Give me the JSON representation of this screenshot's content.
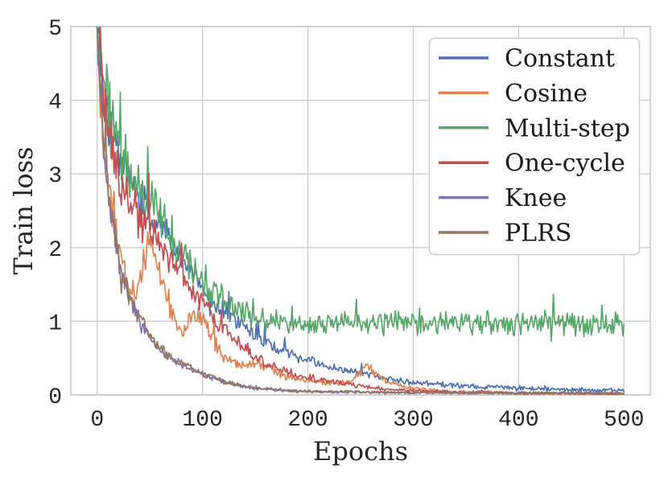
{
  "colors": {
    "background": "#ffffff",
    "grid": "#cccccc",
    "spine": "#c8c8c8",
    "text": "#262626",
    "legend_border": "#cccccc",
    "legend_background": "#ffffff"
  },
  "chart_data": {
    "type": "line",
    "title": "",
    "xlabel": "Epochs",
    "ylabel": "Train loss",
    "xlim": [
      -25,
      525
    ],
    "ylim": [
      0,
      5
    ],
    "xticks": [
      0,
      100,
      200,
      300,
      400,
      500
    ],
    "yticks": [
      0,
      1,
      2,
      3,
      4,
      5
    ],
    "grid": true,
    "legend_position": "upper right",
    "x_data_range": [
      0,
      500
    ],
    "series": [
      {
        "name": "Constant",
        "color": "#4C72B0",
        "seed": 101,
        "noise_base": 0.02,
        "noise_rel": 0.07,
        "spike_prob": 0.05,
        "spike_rel": 0.35,
        "keyframes": [
          [
            0,
            5.05
          ],
          [
            3,
            4.6
          ],
          [
            8,
            3.9
          ],
          [
            15,
            3.45
          ],
          [
            25,
            3.05
          ],
          [
            35,
            2.8
          ],
          [
            45,
            2.55
          ],
          [
            55,
            2.35
          ],
          [
            65,
            2.2
          ],
          [
            75,
            1.95
          ],
          [
            85,
            1.75
          ],
          [
            95,
            1.55
          ],
          [
            105,
            1.35
          ],
          [
            115,
            1.18
          ],
          [
            130,
            1.05
          ],
          [
            145,
            0.88
          ],
          [
            160,
            0.72
          ],
          [
            180,
            0.58
          ],
          [
            200,
            0.47
          ],
          [
            225,
            0.36
          ],
          [
            250,
            0.3
          ],
          [
            275,
            0.22
          ],
          [
            300,
            0.17
          ],
          [
            325,
            0.14
          ],
          [
            350,
            0.12
          ],
          [
            375,
            0.1
          ],
          [
            400,
            0.09
          ],
          [
            430,
            0.08
          ],
          [
            460,
            0.07
          ],
          [
            500,
            0.055
          ]
        ]
      },
      {
        "name": "Cosine",
        "color": "#DD8452",
        "seed": 202,
        "noise_base": 0.015,
        "noise_rel": 0.09,
        "spike_prob": 0.05,
        "spike_rel": 0.3,
        "keyframes": [
          [
            0,
            5.05
          ],
          [
            2,
            4.4
          ],
          [
            5,
            3.7
          ],
          [
            10,
            2.9
          ],
          [
            15,
            2.45
          ],
          [
            20,
            1.95
          ],
          [
            25,
            1.7
          ],
          [
            30,
            1.45
          ],
          [
            35,
            1.35
          ],
          [
            40,
            1.5
          ],
          [
            45,
            1.8
          ],
          [
            50,
            2.05
          ],
          [
            55,
            1.85
          ],
          [
            60,
            1.55
          ],
          [
            65,
            1.3
          ],
          [
            70,
            1.1
          ],
          [
            75,
            0.95
          ],
          [
            80,
            0.9
          ],
          [
            85,
            0.95
          ],
          [
            90,
            1.05
          ],
          [
            95,
            1.12
          ],
          [
            100,
            1.05
          ],
          [
            105,
            0.9
          ],
          [
            110,
            0.75
          ],
          [
            115,
            0.62
          ],
          [
            120,
            0.52
          ],
          [
            130,
            0.45
          ],
          [
            140,
            0.4
          ],
          [
            150,
            0.42
          ],
          [
            160,
            0.38
          ],
          [
            170,
            0.3
          ],
          [
            180,
            0.26
          ],
          [
            190,
            0.22
          ],
          [
            200,
            0.2
          ],
          [
            210,
            0.18
          ],
          [
            220,
            0.16
          ],
          [
            230,
            0.15
          ],
          [
            240,
            0.18
          ],
          [
            250,
            0.3
          ],
          [
            255,
            0.42
          ],
          [
            260,
            0.35
          ],
          [
            265,
            0.28
          ],
          [
            270,
            0.22
          ],
          [
            280,
            0.16
          ],
          [
            290,
            0.12
          ],
          [
            300,
            0.09
          ],
          [
            320,
            0.06
          ],
          [
            340,
            0.04
          ],
          [
            370,
            0.03
          ],
          [
            420,
            0.02
          ],
          [
            500,
            0.012
          ]
        ]
      },
      {
        "name": "Multi-step",
        "color": "#55A868",
        "seed": 303,
        "noise_base": 0.03,
        "noise_rel": 0.1,
        "spike_prob": 0.08,
        "spike_rel": 0.3,
        "keyframes": [
          [
            0,
            5.05
          ],
          [
            3,
            4.65
          ],
          [
            8,
            4.0
          ],
          [
            15,
            3.55
          ],
          [
            25,
            3.15
          ],
          [
            35,
            2.9
          ],
          [
            45,
            2.65
          ],
          [
            55,
            2.45
          ],
          [
            65,
            2.25
          ],
          [
            75,
            2.05
          ],
          [
            85,
            1.85
          ],
          [
            95,
            1.65
          ],
          [
            105,
            1.5
          ],
          [
            115,
            1.35
          ],
          [
            125,
            1.22
          ],
          [
            135,
            1.12
          ],
          [
            150,
            1.03
          ],
          [
            165,
            0.99
          ],
          [
            200,
            0.97
          ],
          [
            250,
            0.98
          ],
          [
            300,
            0.97
          ],
          [
            350,
            0.99
          ],
          [
            400,
            0.98
          ],
          [
            450,
            0.97
          ],
          [
            500,
            0.96
          ]
        ]
      },
      {
        "name": "One-cycle",
        "color": "#C44E52",
        "seed": 404,
        "noise_base": 0.015,
        "noise_rel": 0.09,
        "spike_prob": 0.05,
        "spike_rel": 0.3,
        "keyframes": [
          [
            0,
            5.05
          ],
          [
            3,
            4.5
          ],
          [
            8,
            3.8
          ],
          [
            15,
            3.2
          ],
          [
            25,
            2.8
          ],
          [
            35,
            2.55
          ],
          [
            45,
            2.3
          ],
          [
            55,
            2.1
          ],
          [
            65,
            1.9
          ],
          [
            75,
            1.7
          ],
          [
            85,
            1.5
          ],
          [
            95,
            1.32
          ],
          [
            105,
            1.15
          ],
          [
            115,
            0.97
          ],
          [
            125,
            0.82
          ],
          [
            135,
            0.68
          ],
          [
            145,
            0.56
          ],
          [
            160,
            0.42
          ],
          [
            180,
            0.31
          ],
          [
            200,
            0.24
          ],
          [
            225,
            0.17
          ],
          [
            250,
            0.12
          ],
          [
            275,
            0.08
          ],
          [
            300,
            0.055
          ],
          [
            350,
            0.035
          ],
          [
            425,
            0.025
          ],
          [
            500,
            0.02
          ]
        ]
      },
      {
        "name": "Knee",
        "color": "#8172B3",
        "seed": 505,
        "noise_base": 0.012,
        "noise_rel": 0.08,
        "spike_prob": 0.03,
        "spike_rel": 0.25,
        "keyframes": [
          [
            0,
            5.05
          ],
          [
            2,
            4.4
          ],
          [
            5,
            3.6
          ],
          [
            10,
            2.8
          ],
          [
            15,
            2.3
          ],
          [
            20,
            1.85
          ],
          [
            25,
            1.55
          ],
          [
            30,
            1.32
          ],
          [
            40,
            1.0
          ],
          [
            50,
            0.78
          ],
          [
            60,
            0.6
          ],
          [
            70,
            0.48
          ],
          [
            80,
            0.41
          ],
          [
            90,
            0.34
          ],
          [
            100,
            0.28
          ],
          [
            110,
            0.23
          ],
          [
            120,
            0.18
          ],
          [
            130,
            0.14
          ],
          [
            140,
            0.11
          ],
          [
            150,
            0.09
          ],
          [
            165,
            0.07
          ],
          [
            180,
            0.055
          ],
          [
            200,
            0.045
          ],
          [
            250,
            0.035
          ],
          [
            300,
            0.03
          ],
          [
            400,
            0.025
          ],
          [
            500,
            0.02
          ]
        ]
      },
      {
        "name": "PLRS",
        "color": "#937860",
        "seed": 606,
        "noise_base": 0.012,
        "noise_rel": 0.08,
        "spike_prob": 0.03,
        "spike_rel": 0.25,
        "keyframes": [
          [
            0,
            5.05
          ],
          [
            2,
            4.45
          ],
          [
            5,
            3.65
          ],
          [
            10,
            2.85
          ],
          [
            15,
            2.35
          ],
          [
            20,
            1.9
          ],
          [
            25,
            1.6
          ],
          [
            30,
            1.37
          ],
          [
            40,
            1.05
          ],
          [
            50,
            0.82
          ],
          [
            60,
            0.63
          ],
          [
            70,
            0.5
          ],
          [
            80,
            0.43
          ],
          [
            90,
            0.35
          ],
          [
            100,
            0.29
          ],
          [
            110,
            0.24
          ],
          [
            120,
            0.19
          ],
          [
            130,
            0.15
          ],
          [
            140,
            0.12
          ],
          [
            150,
            0.1
          ],
          [
            165,
            0.08
          ],
          [
            180,
            0.06
          ],
          [
            200,
            0.05
          ],
          [
            250,
            0.04
          ],
          [
            300,
            0.032
          ],
          [
            400,
            0.027
          ],
          [
            500,
            0.022
          ]
        ]
      }
    ]
  }
}
